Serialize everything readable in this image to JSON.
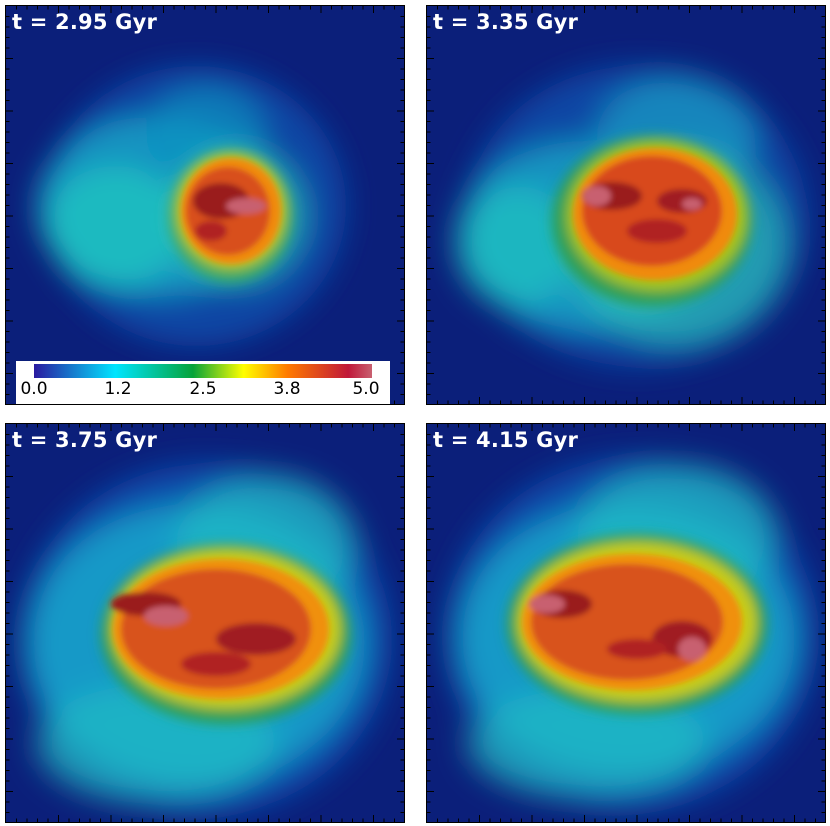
{
  "panels": [
    {
      "time_label": "t = 2.95 Gyr"
    },
    {
      "time_label": "t = 3.35 Gyr"
    },
    {
      "time_label": "t = 3.75 Gyr"
    },
    {
      "time_label": "t = 4.15 Gyr"
    }
  ],
  "colorbar": {
    "min": 0.0,
    "max": 5.0,
    "tick_labels": [
      "0.0",
      "1.2",
      "2.5",
      "3.8",
      "5.0"
    ],
    "colors": [
      "#2a1aa0",
      "#00e5ff",
      "#06a33a",
      "#ffff00",
      "#ff7a00",
      "#c0183a",
      "#c86070"
    ]
  },
  "colormap_background": "#0b1f7a"
}
